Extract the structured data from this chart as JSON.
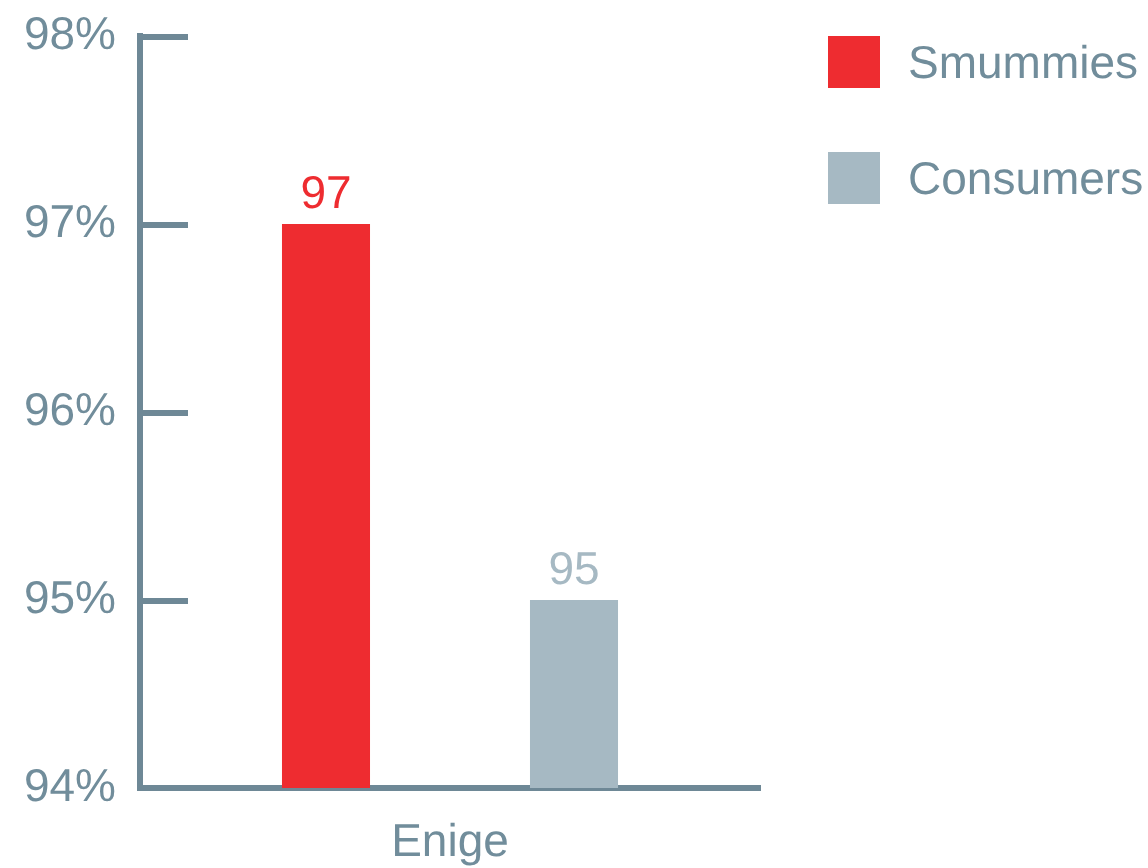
{
  "chart_data": {
    "type": "bar",
    "categories": [
      "Enige"
    ],
    "series": [
      {
        "name": "Smummies",
        "color": "#ee2c30",
        "values": [
          97
        ]
      },
      {
        "name": "Consumers",
        "color": "#a6b9c3",
        "values": [
          95
        ]
      }
    ],
    "ylim": [
      94,
      98
    ],
    "yticks": [
      {
        "value": 94,
        "label": "94%"
      },
      {
        "value": 95,
        "label": "95%"
      },
      {
        "value": 96,
        "label": "96%"
      },
      {
        "value": 97,
        "label": "97%"
      },
      {
        "value": 98,
        "label": "98%"
      }
    ],
    "data_labels": true,
    "grid": false,
    "legend": "top right"
  }
}
